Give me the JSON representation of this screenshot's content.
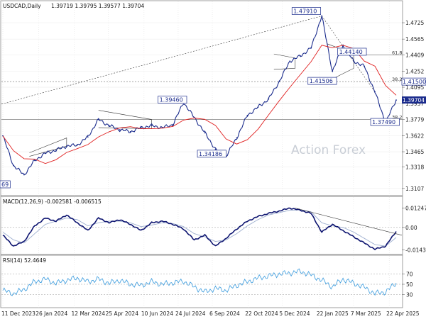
{
  "header": {
    "symbol": "USDCAD,Daily",
    "ohlc": "1.39719 1.39795 1.39577 1.39704"
  },
  "watermark": "Action Forex",
  "colors": {
    "price": "#1a2b8c",
    "ma": "#e02020",
    "macd": "#0d1470",
    "signal": "#9fb0d0",
    "rsi": "#4aa3e0",
    "grid": "#cfcfcf"
  },
  "chart_data": [
    {
      "type": "line",
      "name": "price",
      "x": [
        "2023-12-11",
        "2023-12-20",
        "2024-01-02",
        "2024-01-12",
        "2024-01-26",
        "2024-02-09",
        "2024-02-23",
        "2024-03-08",
        "2024-03-22",
        "2024-04-05",
        "2024-04-16",
        "2024-04-30",
        "2024-05-14",
        "2024-05-28",
        "2024-06-11",
        "2024-06-25",
        "2024-07-09",
        "2024-07-24",
        "2024-08-05",
        "2024-08-20",
        "2024-09-03",
        "2024-09-24",
        "2024-10-08",
        "2024-10-22",
        "2024-11-05",
        "2024-11-19",
        "2024-12-03",
        "2024-12-18",
        "2025-01-02",
        "2025-01-20",
        "2025-02-03",
        "2025-02-14",
        "2025-03-04",
        "2025-03-18",
        "2025-04-01",
        "2025-04-08",
        "2025-04-21",
        "2025-05-01"
      ],
      "values": [
        1.362,
        1.333,
        1.324,
        1.338,
        1.345,
        1.348,
        1.352,
        1.353,
        1.361,
        1.378,
        1.372,
        1.368,
        1.366,
        1.37,
        1.372,
        1.37,
        1.373,
        1.3946,
        1.38,
        1.365,
        1.349,
        1.342,
        1.36,
        1.382,
        1.39,
        1.398,
        1.415,
        1.435,
        1.44,
        1.448,
        1.4791,
        1.425,
        1.45,
        1.435,
        1.43,
        1.405,
        1.3749,
        1.397
      ],
      "yticks": [
        1.3107,
        1.3318,
        1.3465,
        1.3622,
        1.3779,
        1.3937,
        1.4095,
        1.4252,
        1.4409,
        1.4565,
        1.4725
      ],
      "ylim": [
        1.305,
        1.485
      ],
      "last_price": 1.39704,
      "levels": [
        {
          "label": "61.8",
          "value": 1.4409
        },
        {
          "label": "38.2",
          "value": 1.415
        },
        {
          "label": "38.2",
          "value": 1.3779
        }
      ],
      "annotations": [
        "1.47910",
        "1.44140",
        "1.41500",
        "1.41506",
        "1.39460",
        "1.34186",
        "1.37490",
        "69"
      ],
      "xtick_labels": [
        "11 Dec 2023",
        "26 Jan 2024",
        "12 Mar 2024",
        "25 Apr 2024",
        "10 Jun 2024",
        "24 Jul 2024",
        "6 Sep 2024",
        "22 Oct 2024",
        "5 Dec 2024",
        "22 Jan 2025",
        "7 Mar 2025",
        "22 Apr 2025"
      ]
    },
    {
      "type": "line",
      "title": "MACD(12,26,9) -0.002581 -0.006515",
      "series": [
        {
          "name": "macd",
          "values": [
            -0.005,
            -0.012,
            -0.009,
            0.001,
            0.006,
            0.004,
            0.008,
            0.003,
            -0.002,
            0.006,
            0.003,
            0.005,
            0.002,
            -0.002,
            0.003,
            0.004,
            0.002,
            -0.001,
            -0.008,
            -0.005,
            -0.012,
            -0.007,
            -0.001,
            0.004,
            0.007,
            0.009,
            0.0105,
            0.0124,
            0.011,
            0.009,
            -0.003,
            0.002,
            -0.002,
            -0.006,
            -0.01,
            -0.014,
            -0.012,
            -0.0026
          ]
        },
        {
          "name": "signal",
          "values": [
            -0.003,
            -0.008,
            -0.01,
            -0.004,
            0.002,
            0.004,
            0.006,
            0.005,
            0.001,
            0.003,
            0.004,
            0.004,
            0.003,
            0.0005,
            0.0015,
            0.003,
            0.0025,
            0.0005,
            -0.004,
            -0.006,
            -0.009,
            -0.008,
            -0.004,
            0.001,
            0.005,
            0.008,
            0.0095,
            0.011,
            0.0112,
            0.01,
            0.003,
            0.001,
            0.0,
            -0.003,
            -0.007,
            -0.011,
            -0.012,
            -0.0065
          ]
        }
      ],
      "yticks": [
        0.012472,
        0.0,
        -0.014389
      ],
      "ylim": [
        -0.016,
        0.014
      ]
    },
    {
      "type": "line",
      "title": "RSI(14) 52.4649",
      "values": [
        38,
        32,
        40,
        55,
        60,
        52,
        58,
        62,
        55,
        60,
        52,
        58,
        50,
        48,
        55,
        50,
        53,
        56,
        45,
        35,
        42,
        38,
        48,
        55,
        62,
        66,
        70,
        72,
        75,
        68,
        58,
        45,
        60,
        52,
        44,
        32,
        35,
        52.46
      ],
      "yticks": [
        70,
        50,
        30
      ],
      "ylim": [
        10,
        90
      ]
    }
  ]
}
